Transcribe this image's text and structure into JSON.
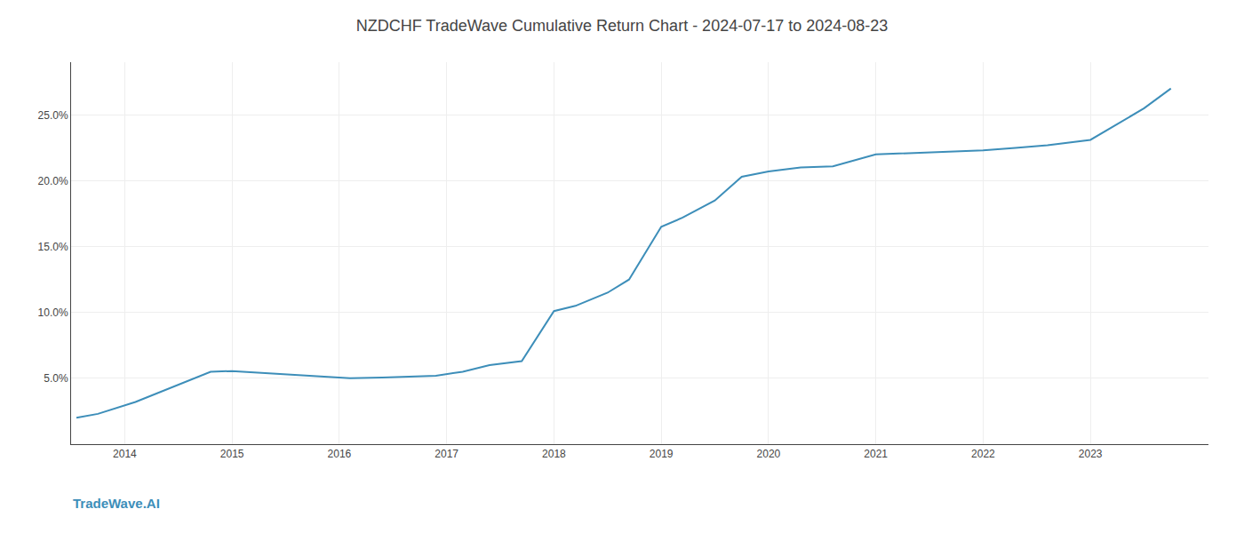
{
  "chart_data": {
    "type": "line",
    "title": "NZDCHF TradeWave Cumulative Return Chart - 2024-07-17 to 2024-08-23",
    "annotations": [
      "TradeWave.AI"
    ],
    "color": "#3d8eb9",
    "x": [
      2013.55,
      2013.75,
      2014.1,
      2014.5,
      2014.8,
      2015.0,
      2015.3,
      2015.6,
      2015.9,
      2016.1,
      2016.4,
      2016.6,
      2016.9,
      2017.15,
      2017.4,
      2017.7,
      2018.0,
      2018.2,
      2018.5,
      2018.7,
      2019.0,
      2019.2,
      2019.5,
      2019.75,
      2020.0,
      2020.3,
      2020.6,
      2021.0,
      2021.3,
      2021.6,
      2022.0,
      2022.3,
      2022.6,
      2023.0,
      2023.5,
      2023.75
    ],
    "values": [
      2.0,
      2.3,
      3.2,
      4.5,
      5.5,
      5.55,
      5.4,
      5.2,
      5.05,
      5.0,
      5.05,
      5.1,
      5.2,
      5.5,
      6.0,
      6.3,
      10.1,
      10.5,
      11.5,
      12.5,
      16.5,
      17.2,
      18.5,
      20.3,
      20.7,
      21.0,
      21.1,
      22.0,
      22.1,
      22.2,
      22.3,
      22.5,
      22.7,
      23.1,
      25.5,
      27.0
    ],
    "xlim": [
      2013.5,
      2024.1
    ],
    "ylim": [
      0,
      29
    ],
    "xticks": [
      2014,
      2015,
      2016,
      2017,
      2018,
      2019,
      2020,
      2021,
      2022,
      2023
    ],
    "yticks": [
      {
        "value": 5.0,
        "label": "5.0%"
      },
      {
        "value": 10.0,
        "label": "10.0%"
      },
      {
        "value": 15.0,
        "label": "15.0%"
      },
      {
        "value": 20.0,
        "label": "20.0%"
      },
      {
        "value": 25.0,
        "label": "25.0%"
      }
    ],
    "grid": true
  }
}
